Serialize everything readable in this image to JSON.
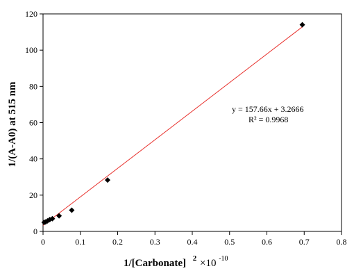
{
  "chart_data": {
    "type": "scatter",
    "title": "",
    "xlabel": "1/[Carbonate]",
    "xlabel_sup": "2",
    "xlabel_suffix": "×10",
    "xlabel_exp": "-10",
    "ylabel": "1/(A-A0)  at 515 nm",
    "xlim": [
      0,
      0.8
    ],
    "ylim": [
      0,
      120
    ],
    "xticks": [
      "0",
      "0.1",
      "0.2",
      "0.3",
      "0.4",
      "0.5",
      "0.6",
      "0.7",
      "0.8"
    ],
    "yticks": [
      "0",
      "20",
      "40",
      "60",
      "80",
      "100",
      "120"
    ],
    "grid": false,
    "series": [
      {
        "marker": "diamond",
        "color": "#000000",
        "x": [
          0.003,
          0.007,
          0.012,
          0.018,
          0.025,
          0.043,
          0.077,
          0.173,
          0.695
        ],
        "y": [
          5.0,
          5.2,
          5.8,
          6.5,
          7.0,
          8.6,
          11.7,
          28.3,
          114.0
        ]
      }
    ],
    "trendline": {
      "slope": 157.66,
      "intercept": 3.2666,
      "x_range": [
        0,
        0.695
      ],
      "color": "#e8322e"
    },
    "equation_label": "y = 157.66x + 3.2666",
    "r2_label": "R² = 0.9968"
  }
}
